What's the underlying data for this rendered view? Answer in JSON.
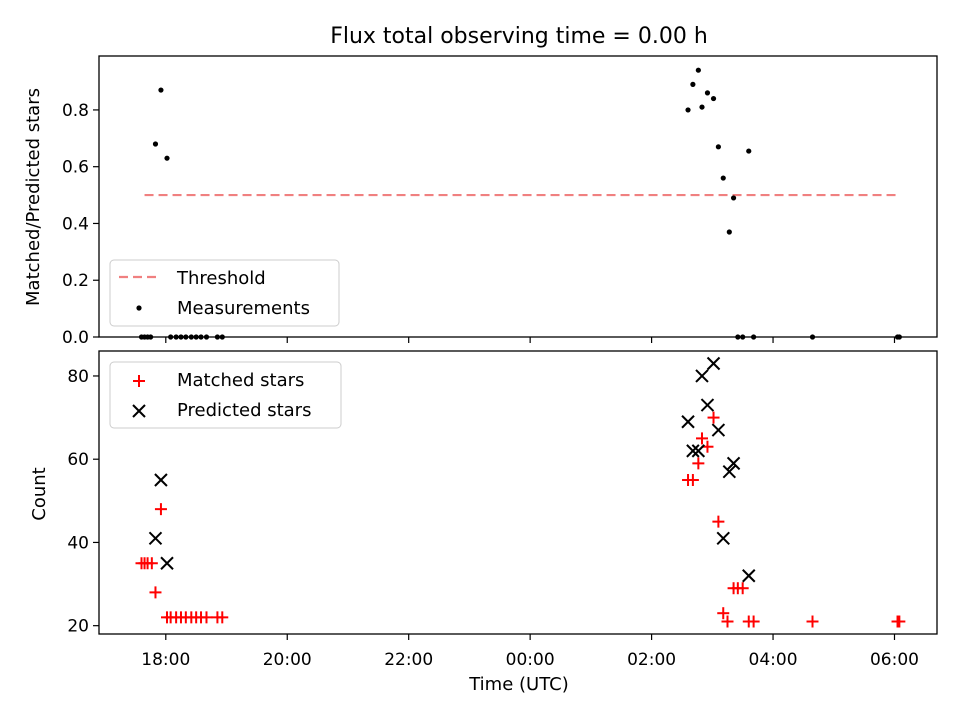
{
  "chart_data": [
    {
      "type": "scatter",
      "title": "Flux total observing time = 0.00 h",
      "xlabel": "",
      "ylabel": "Matched/Predicted stars",
      "xlim_hours": [
        16.9,
        30.7
      ],
      "ylim": [
        0,
        0.99
      ],
      "yticks": [
        0.0,
        0.2,
        0.4,
        0.6,
        0.8
      ],
      "ytick_labels": [
        "0.0",
        "0.2",
        "0.4",
        "0.6",
        "0.8"
      ],
      "legend_position": "lower-left",
      "series": [
        {
          "name": "Threshold",
          "kind": "dashed-line",
          "color": "#f08080",
          "x": [
            17.65,
            30.03
          ],
          "y": [
            0.5,
            0.5
          ]
        },
        {
          "name": "Measurements",
          "kind": "dots",
          "color": "#000000",
          "x": [
            17.6,
            17.65,
            17.7,
            17.75,
            17.83,
            17.92,
            18.02,
            18.08,
            18.17,
            18.25,
            18.33,
            18.42,
            18.5,
            18.58,
            18.67,
            18.85,
            18.93,
            26.6,
            26.68,
            26.77,
            26.83,
            26.92,
            27.02,
            27.1,
            27.18,
            27.28,
            27.35,
            27.42,
            27.5,
            27.6,
            27.68,
            28.65,
            30.05,
            30.08
          ],
          "y": [
            0.0,
            0.0,
            0.0,
            0.0,
            0.68,
            0.87,
            0.63,
            0.0,
            0.0,
            0.0,
            0.0,
            0.0,
            0.0,
            0.0,
            0.0,
            0.0,
            0.0,
            0.8,
            0.89,
            0.94,
            0.81,
            0.86,
            0.84,
            0.67,
            0.56,
            0.37,
            0.49,
            0.0,
            0.0,
            0.655,
            0.0,
            0.0,
            0.0,
            0.0
          ]
        }
      ]
    },
    {
      "type": "scatter",
      "title": "",
      "xlabel": "Time (UTC)",
      "ylabel": "Count",
      "xlim_hours": [
        16.9,
        30.7
      ],
      "ylim": [
        18,
        86
      ],
      "yticks": [
        20,
        40,
        60,
        80
      ],
      "ytick_labels": [
        "20",
        "40",
        "60",
        "80"
      ],
      "xticks_hours": [
        18,
        20,
        22,
        24,
        26,
        28,
        30
      ],
      "xtick_labels": [
        "18:00",
        "20:00",
        "22:00",
        "00:00",
        "02:00",
        "04:00",
        "06:00"
      ],
      "legend_position": "upper-left",
      "series": [
        {
          "name": "Matched stars",
          "marker": "plus",
          "color": "#ff0000",
          "x": [
            17.6,
            17.65,
            17.7,
            17.77,
            17.83,
            17.92,
            18.02,
            18.08,
            18.17,
            18.25,
            18.33,
            18.42,
            18.5,
            18.58,
            18.67,
            18.85,
            18.93,
            26.6,
            26.68,
            26.77,
            26.83,
            26.92,
            27.02,
            27.1,
            27.18,
            27.25,
            27.35,
            27.42,
            27.5,
            27.6,
            27.68,
            28.65,
            30.05,
            30.08
          ],
          "y": [
            35,
            35,
            35,
            35,
            28,
            48,
            22,
            22,
            22,
            22,
            22,
            22,
            22,
            22,
            22,
            22,
            22,
            55,
            55,
            59,
            65,
            63,
            70,
            45,
            23,
            21,
            29,
            29,
            29,
            21,
            21,
            21,
            21,
            21
          ]
        },
        {
          "name": "Predicted stars",
          "marker": "x",
          "color": "#000000",
          "x": [
            17.83,
            17.92,
            18.02,
            26.6,
            26.68,
            26.77,
            26.83,
            26.92,
            27.02,
            27.1,
            27.18,
            27.28,
            27.35,
            27.6
          ],
          "y": [
            41,
            55,
            35,
            69,
            62,
            62,
            80,
            73,
            83,
            67,
            41,
            57,
            59,
            32
          ]
        }
      ]
    }
  ]
}
